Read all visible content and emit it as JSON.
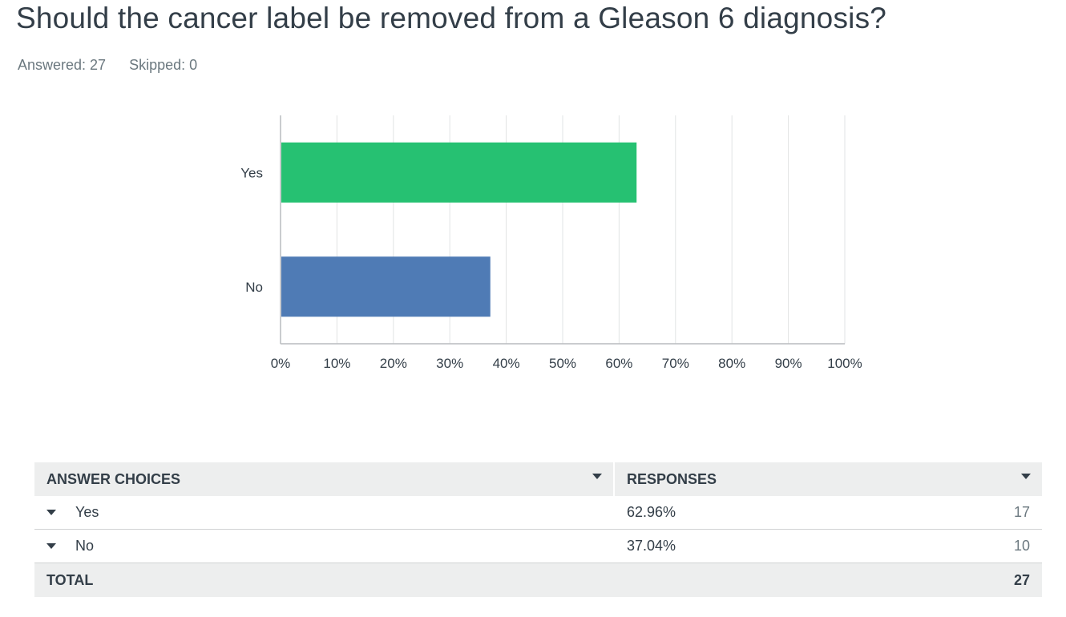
{
  "question": {
    "title": "Should the cancer label be removed from a Gleason 6 diagnosis?",
    "answered": "Answered: 27",
    "skipped": "Skipped: 0"
  },
  "chart_data": {
    "type": "bar",
    "orientation": "horizontal",
    "categories": [
      "Yes",
      "No"
    ],
    "values": [
      62.96,
      37.04
    ],
    "colors": [
      "#26c172",
      "#4f7bb5"
    ],
    "xlim": [
      0,
      100
    ],
    "xticks": [
      "0%",
      "10%",
      "20%",
      "30%",
      "40%",
      "50%",
      "60%",
      "70%",
      "80%",
      "90%",
      "100%"
    ],
    "grid": true,
    "legend": "none"
  },
  "table": {
    "headers": {
      "choices": "ANSWER CHOICES",
      "responses": "RESPONSES"
    },
    "rows": [
      {
        "label": "Yes",
        "percent": "62.96%",
        "count": "17"
      },
      {
        "label": "No",
        "percent": "37.04%",
        "count": "10"
      }
    ],
    "total": {
      "label": "TOTAL",
      "count": "27"
    }
  },
  "colors": {
    "grid": "#e1e3e4",
    "axis": "#b9bcbf",
    "header_bg": "#edeeee"
  }
}
